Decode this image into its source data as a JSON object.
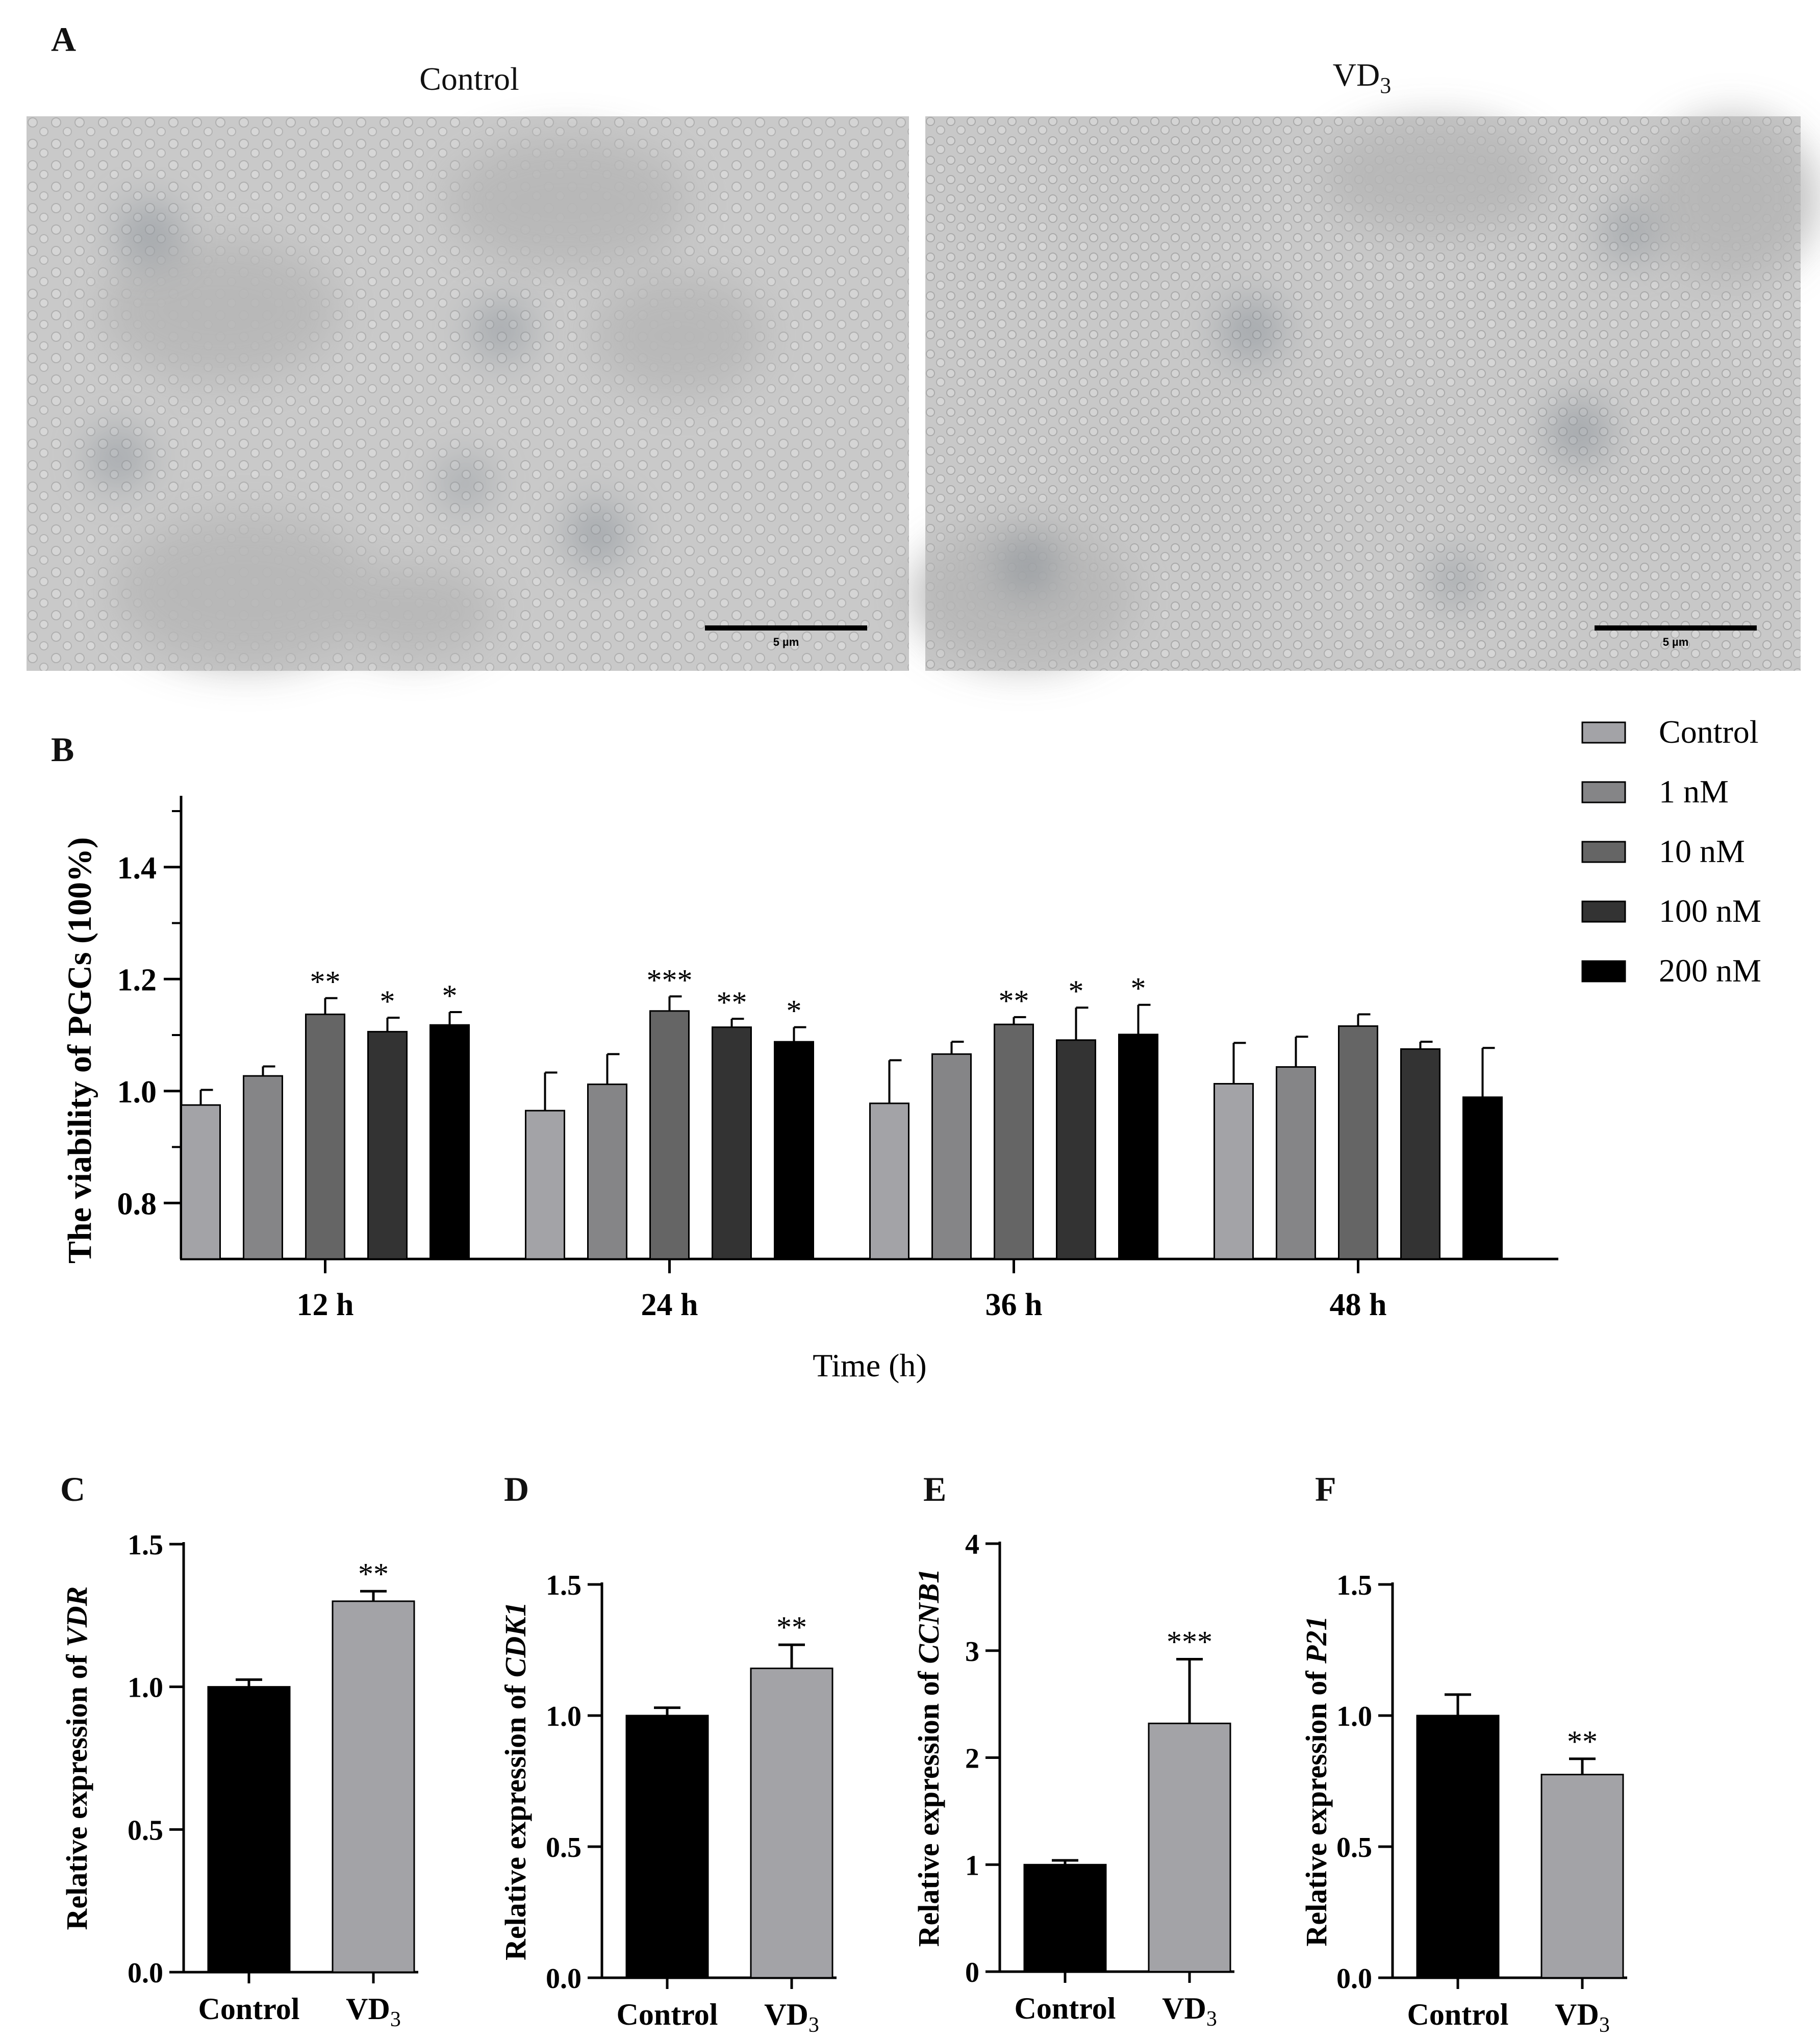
{
  "panel_a": {
    "letter": "A",
    "images": [
      {
        "label": "Control",
        "scale": "5 µm"
      },
      {
        "label": "VD",
        "label_sub": "3",
        "scale": "5 µm"
      }
    ]
  },
  "panel_letters": {
    "b": "B",
    "c": "C",
    "d": "D",
    "e": "E",
    "f": "F"
  },
  "chart_data": [
    {
      "type": "bar",
      "panel": "B",
      "ylabel": "The viability of PGCs (100%)",
      "xlabel": "Time (h)",
      "categories": [
        "12 h",
        "24 h",
        "36 h",
        "48 h"
      ],
      "ylim": [
        0.7,
        1.5
      ],
      "yticks": [
        0.8,
        1.0,
        1.2,
        1.4
      ],
      "ytick_labels": [
        "0.8",
        "1.0",
        "1.2",
        "1.4"
      ],
      "legend_position": "top-right",
      "series": [
        {
          "name": "Control",
          "color": "#a3a3a7",
          "values": [
            0.975,
            0.965,
            0.978,
            1.013
          ],
          "errors": [
            0.027,
            0.068,
            0.077,
            0.073
          ],
          "sig": [
            "",
            "",
            "",
            ""
          ]
        },
        {
          "name": "1 nM",
          "color": "#858587",
          "values": [
            1.027,
            1.012,
            1.066,
            1.043
          ],
          "errors": [
            0.017,
            0.054,
            0.022,
            0.054
          ],
          "sig": [
            "",
            "",
            "",
            ""
          ]
        },
        {
          "name": "10 nM",
          "color": "#656565",
          "values": [
            1.137,
            1.143,
            1.119,
            1.116
          ],
          "errors": [
            0.029,
            0.026,
            0.013,
            0.021
          ],
          "sig": [
            "**",
            "***",
            "**",
            ""
          ]
        },
        {
          "name": "100 nM",
          "color": "#333333",
          "values": [
            1.106,
            1.114,
            1.091,
            1.075
          ],
          "errors": [
            0.025,
            0.015,
            0.058,
            0.013
          ],
          "sig": [
            "*",
            "**",
            "*",
            ""
          ]
        },
        {
          "name": "200 nM",
          "color": "#000000",
          "values": [
            1.118,
            1.088,
            1.101,
            0.989
          ],
          "errors": [
            0.023,
            0.026,
            0.053,
            0.088
          ],
          "sig": [
            "*",
            "*",
            "*",
            ""
          ]
        }
      ]
    },
    {
      "type": "bar",
      "panel": "C",
      "ylabel_prefix": "Relative expression of ",
      "ylabel_gene": "VDR",
      "categories": [
        "Control",
        "VD"
      ],
      "category_sub": [
        "",
        "3"
      ],
      "values": [
        1.0,
        1.3
      ],
      "errors": [
        0.025,
        0.035
      ],
      "sig": [
        "",
        "**"
      ],
      "colors": [
        "#000000",
        "#a3a3a7"
      ],
      "ylim": [
        0,
        1.5
      ],
      "yticks": [
        0.0,
        0.5,
        1.0,
        1.5
      ],
      "ytick_labels": [
        "0.0",
        "0.5",
        "1.0",
        "1.5"
      ]
    },
    {
      "type": "bar",
      "panel": "D",
      "ylabel_prefix": "Relative expression of ",
      "ylabel_gene": "CDK1",
      "categories": [
        "Control",
        "VD"
      ],
      "category_sub": [
        "",
        "3"
      ],
      "values": [
        1.0,
        1.18
      ],
      "errors": [
        0.03,
        0.09
      ],
      "sig": [
        "",
        "**"
      ],
      "colors": [
        "#000000",
        "#a3a3a7"
      ],
      "ylim": [
        0,
        1.5
      ],
      "yticks": [
        0.0,
        0.5,
        1.0,
        1.5
      ],
      "ytick_labels": [
        "0.0",
        "0.5",
        "1.0",
        "1.5"
      ]
    },
    {
      "type": "bar",
      "panel": "E",
      "ylabel_prefix": "Relative expression of ",
      "ylabel_gene": "CCNB1",
      "categories": [
        "Control",
        "VD"
      ],
      "category_sub": [
        "",
        "3"
      ],
      "values": [
        1.0,
        2.32
      ],
      "errors": [
        0.04,
        0.6
      ],
      "sig": [
        "",
        "***"
      ],
      "colors": [
        "#000000",
        "#a3a3a7"
      ],
      "ylim": [
        0,
        4
      ],
      "yticks": [
        0,
        1,
        2,
        3,
        4
      ],
      "ytick_labels": [
        "0",
        "1",
        "2",
        "3",
        "4"
      ]
    },
    {
      "type": "bar",
      "panel": "F",
      "ylabel_prefix": "Relative expression of ",
      "ylabel_gene": "P21",
      "categories": [
        "Control",
        "VD"
      ],
      "category_sub": [
        "",
        "3"
      ],
      "values": [
        1.0,
        0.775
      ],
      "errors": [
        0.08,
        0.06
      ],
      "sig": [
        "",
        "**"
      ],
      "colors": [
        "#000000",
        "#a3a3a7"
      ],
      "ylim": [
        0,
        1.5
      ],
      "yticks": [
        0.0,
        0.5,
        1.0,
        1.5
      ],
      "ytick_labels": [
        "0.0",
        "0.5",
        "1.0",
        "1.5"
      ]
    }
  ]
}
